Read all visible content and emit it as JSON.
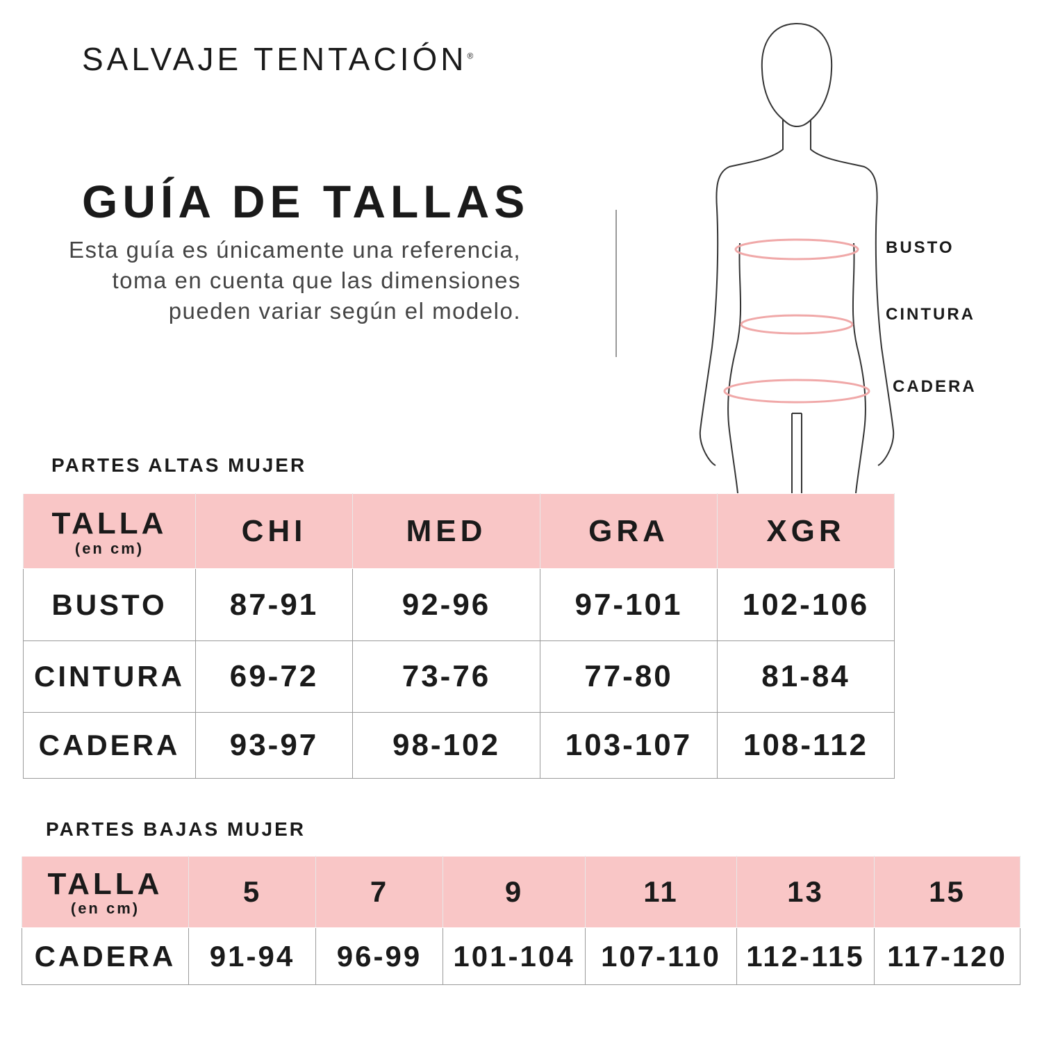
{
  "brand": {
    "name": "SALVAJE TENTACIÓN",
    "mark": "®"
  },
  "title": "GUÍA DE TALLAS",
  "description": "Esta guía es únicamente una referencia, toma en cuenta que las dimensiones pueden variar según el modelo.",
  "figure": {
    "labels": [
      "BUSTO",
      "CINTURA",
      "CADERA"
    ],
    "measure_color": "#f0a8a8"
  },
  "colors": {
    "header_bg": "#f9c6c6",
    "text": "#1a1a1a"
  },
  "tops": {
    "section": "PARTES ALTAS MUJER",
    "header": {
      "talla": "TALLA",
      "unit": "(en cm)",
      "sizes": [
        "CHI",
        "MED",
        "GRA",
        "XGR"
      ]
    },
    "rows": [
      {
        "label": "BUSTO",
        "values": [
          "87-91",
          "92-96",
          "97-101",
          "102-106"
        ]
      },
      {
        "label": "CINTURA",
        "values": [
          "69-72",
          "73-76",
          "77-80",
          "81-84"
        ]
      },
      {
        "label": "CADERA",
        "values": [
          "93-97",
          "98-102",
          "103-107",
          "108-112"
        ]
      }
    ]
  },
  "bottoms": {
    "section": "PARTES BAJAS MUJER",
    "header": {
      "talla": "TALLA",
      "unit": "(en cm)",
      "sizes": [
        "5",
        "7",
        "9",
        "11",
        "13",
        "15"
      ]
    },
    "rows": [
      {
        "label": "CADERA",
        "values": [
          "91-94",
          "96-99",
          "101-104",
          "107-110",
          "112-115",
          "117-120"
        ]
      }
    ]
  }
}
